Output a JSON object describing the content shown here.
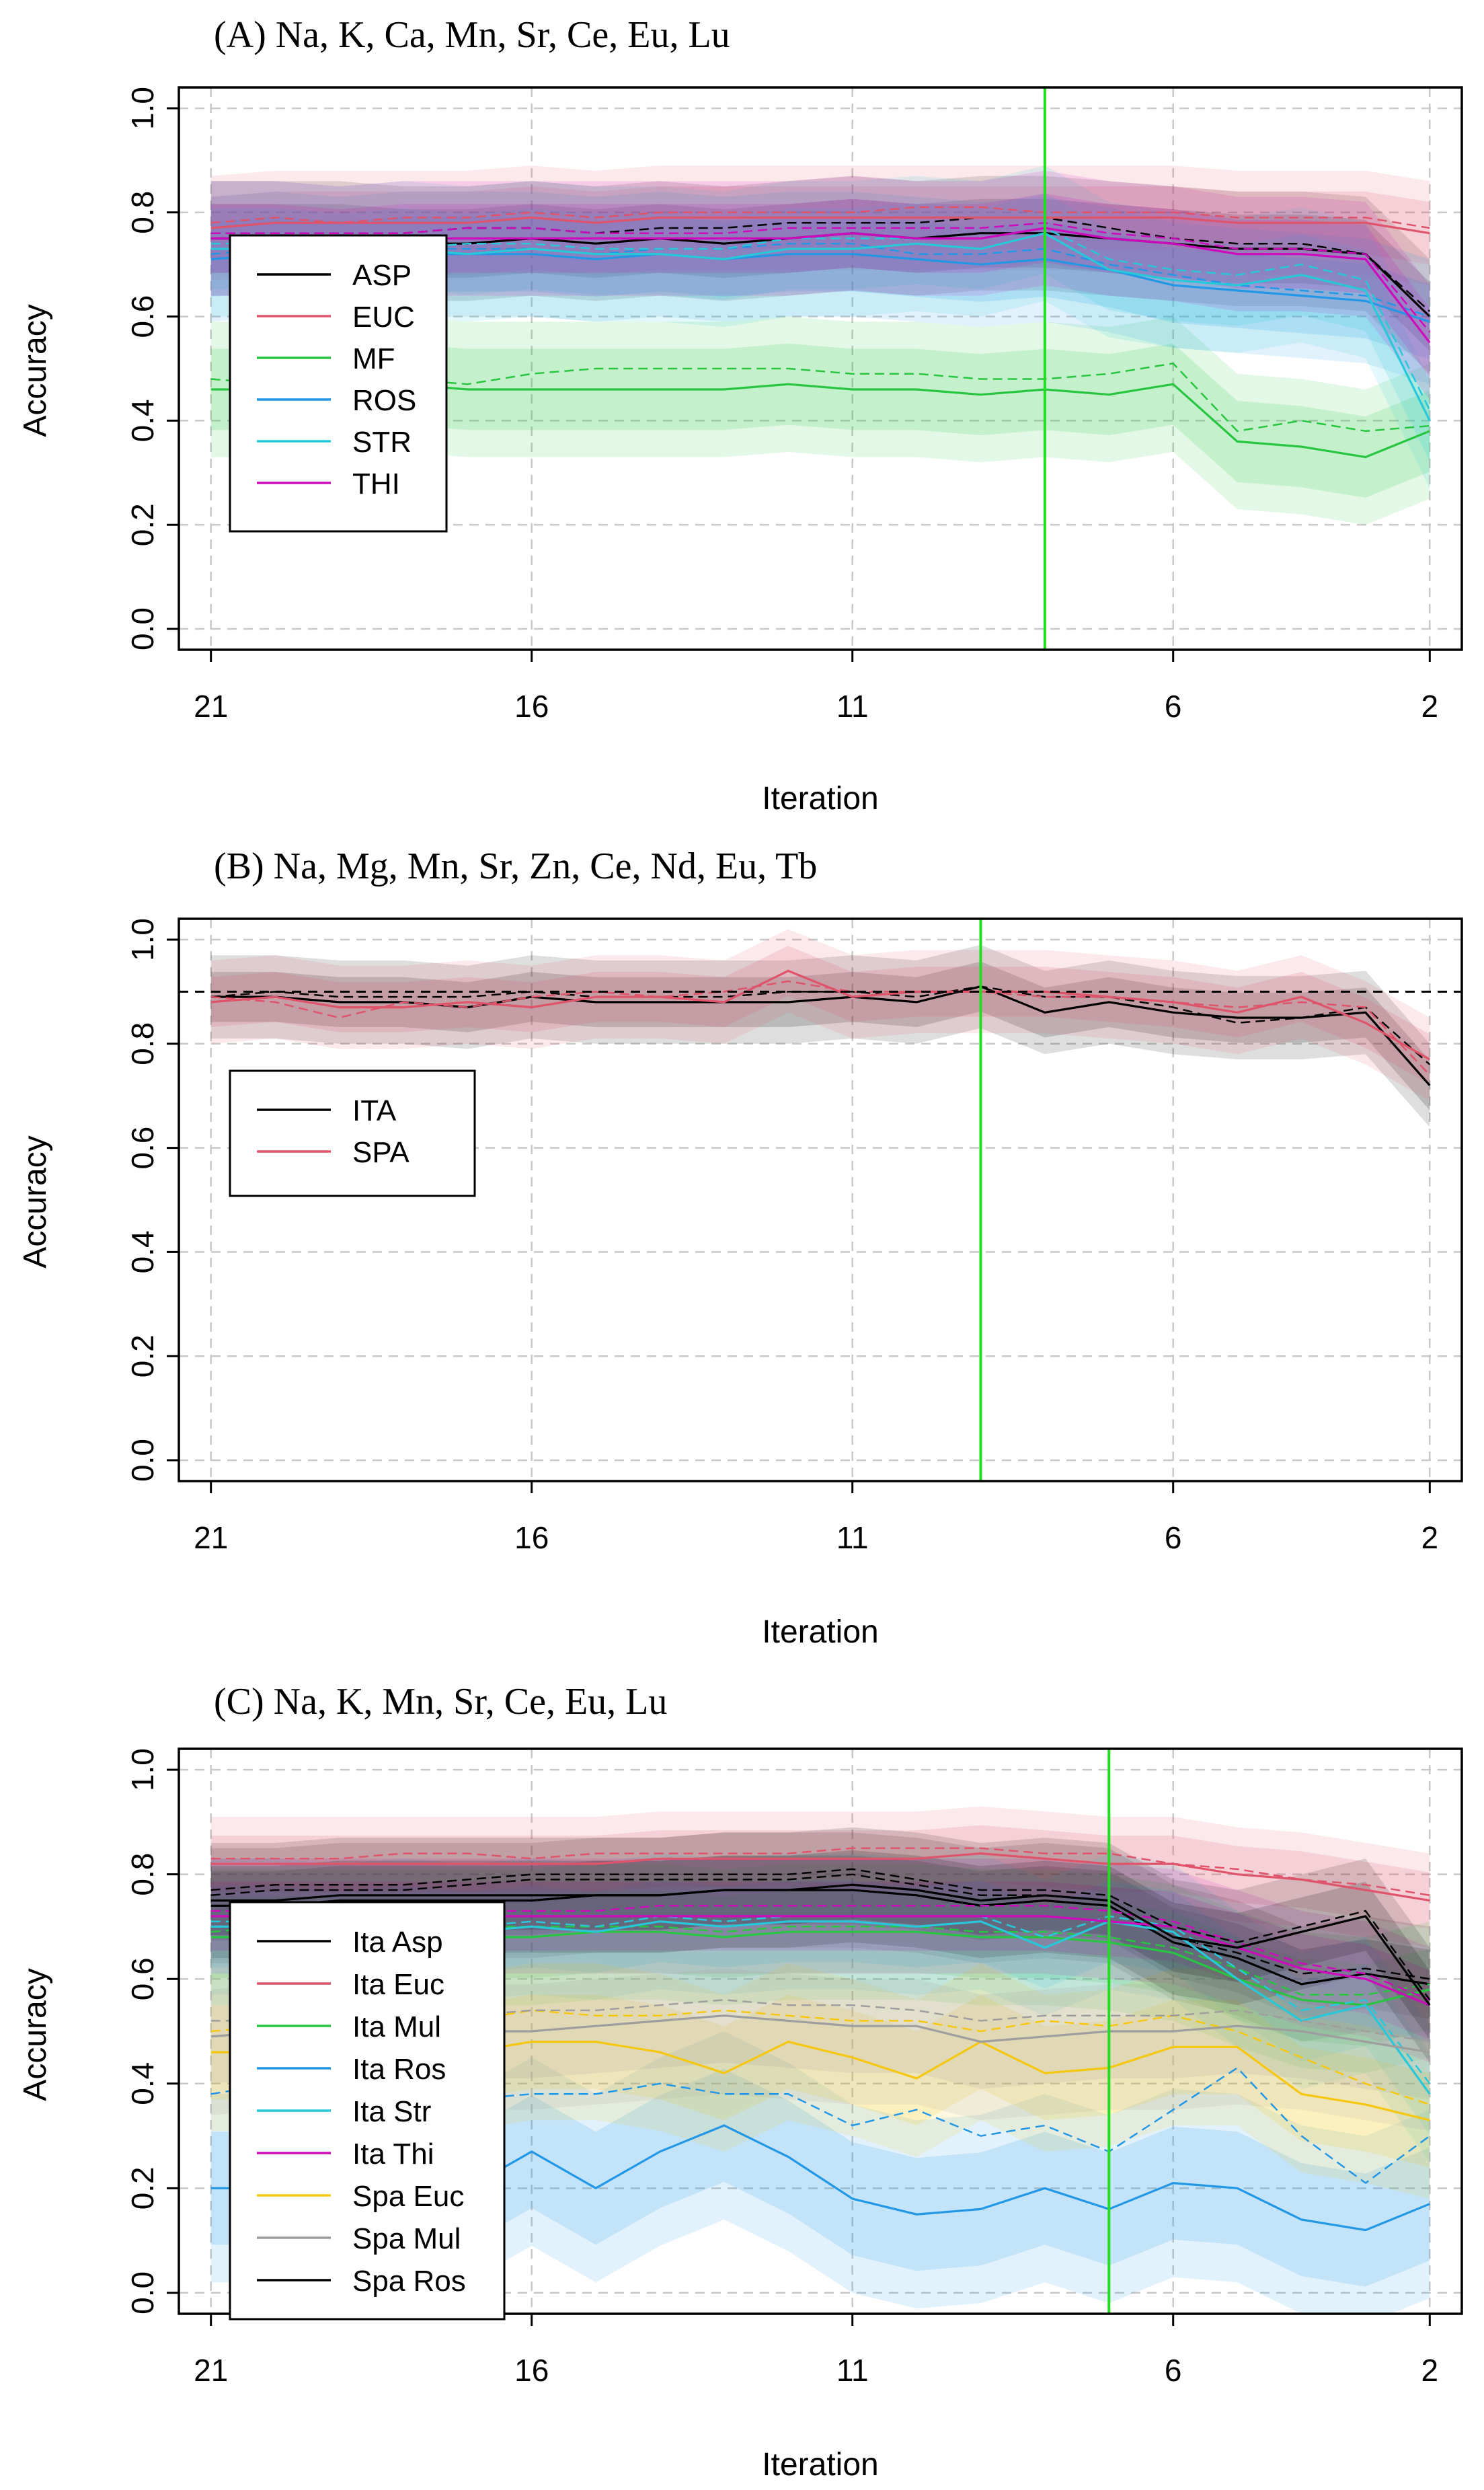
{
  "chart_data": [
    {
      "type": "line",
      "title": "(A) Na, K, Ca, Mn, Sr, Ce, Eu, Lu",
      "xlabel": "Iteration",
      "ylabel": "Accuracy",
      "xlim": [
        21.5,
        1.5
      ],
      "ylim": [
        -0.04,
        1.04
      ],
      "xticks": [
        "21",
        "16",
        "11",
        "6",
        "2"
      ],
      "yticks": [
        "0.0",
        "0.2",
        "0.4",
        "0.6",
        "0.8",
        "1.0"
      ],
      "grid": true,
      "legend_position": "left",
      "vline": 8,
      "hline": null,
      "x": [
        21,
        20,
        19,
        18,
        17,
        16,
        15,
        14,
        13,
        12,
        11,
        10,
        9,
        8,
        7,
        6,
        5,
        4,
        3,
        2
      ],
      "series": [
        {
          "name": "ASP",
          "color": "#000000",
          "values": [
            0.75,
            0.75,
            0.75,
            0.74,
            0.74,
            0.75,
            0.74,
            0.75,
            0.74,
            0.75,
            0.76,
            0.75,
            0.76,
            0.76,
            0.75,
            0.74,
            0.73,
            0.73,
            0.72,
            0.6
          ],
          "dashed": [
            0.76,
            0.76,
            0.76,
            0.76,
            0.77,
            0.77,
            0.76,
            0.77,
            0.77,
            0.78,
            0.78,
            0.78,
            0.79,
            0.79,
            0.77,
            0.75,
            0.74,
            0.74,
            0.72,
            0.61
          ],
          "band": 0.11
        },
        {
          "name": "EUC",
          "color": "#df536b",
          "values": [
            0.77,
            0.78,
            0.78,
            0.78,
            0.78,
            0.79,
            0.78,
            0.79,
            0.79,
            0.79,
            0.79,
            0.79,
            0.79,
            0.79,
            0.79,
            0.79,
            0.78,
            0.78,
            0.78,
            0.76
          ],
          "dashed": [
            0.78,
            0.79,
            0.78,
            0.79,
            0.79,
            0.8,
            0.79,
            0.8,
            0.8,
            0.8,
            0.8,
            0.81,
            0.81,
            0.8,
            0.8,
            0.8,
            0.79,
            0.79,
            0.79,
            0.77
          ],
          "band": 0.1
        },
        {
          "name": "MF",
          "color": "#28c640",
          "values": [
            0.46,
            0.46,
            0.46,
            0.47,
            0.46,
            0.46,
            0.46,
            0.46,
            0.46,
            0.47,
            0.46,
            0.46,
            0.45,
            0.46,
            0.45,
            0.47,
            0.36,
            0.35,
            0.33,
            0.38
          ],
          "dashed": [
            0.48,
            0.47,
            0.47,
            0.48,
            0.47,
            0.49,
            0.5,
            0.5,
            0.5,
            0.5,
            0.49,
            0.49,
            0.48,
            0.48,
            0.49,
            0.51,
            0.38,
            0.4,
            0.38,
            0.39
          ],
          "band": 0.13
        },
        {
          "name": "ROS",
          "color": "#2297e6",
          "values": [
            0.71,
            0.72,
            0.71,
            0.72,
            0.72,
            0.72,
            0.71,
            0.72,
            0.71,
            0.72,
            0.72,
            0.71,
            0.7,
            0.71,
            0.69,
            0.66,
            0.65,
            0.64,
            0.63,
            0.59
          ],
          "dashed": [
            0.72,
            0.73,
            0.72,
            0.73,
            0.73,
            0.73,
            0.72,
            0.73,
            0.73,
            0.74,
            0.74,
            0.72,
            0.72,
            0.73,
            0.7,
            0.68,
            0.66,
            0.65,
            0.64,
            0.6
          ],
          "band": 0.12
        },
        {
          "name": "STR",
          "color": "#26c8d9",
          "values": [
            0.73,
            0.73,
            0.72,
            0.73,
            0.72,
            0.73,
            0.72,
            0.72,
            0.71,
            0.73,
            0.73,
            0.74,
            0.73,
            0.76,
            0.69,
            0.67,
            0.66,
            0.68,
            0.65,
            0.4
          ],
          "dashed": [
            0.74,
            0.74,
            0.74,
            0.73,
            0.74,
            0.74,
            0.73,
            0.73,
            0.73,
            0.75,
            0.75,
            0.75,
            0.75,
            0.77,
            0.71,
            0.69,
            0.68,
            0.7,
            0.67,
            0.42
          ],
          "band": 0.13
        },
        {
          "name": "THI",
          "color": "#cd0bbc",
          "values": [
            0.75,
            0.75,
            0.74,
            0.75,
            0.75,
            0.75,
            0.75,
            0.75,
            0.75,
            0.75,
            0.76,
            0.75,
            0.75,
            0.77,
            0.75,
            0.74,
            0.72,
            0.72,
            0.71,
            0.55
          ],
          "dashed": [
            0.76,
            0.76,
            0.76,
            0.76,
            0.77,
            0.77,
            0.76,
            0.76,
            0.76,
            0.77,
            0.77,
            0.77,
            0.77,
            0.78,
            0.76,
            0.75,
            0.73,
            0.73,
            0.72,
            0.57
          ],
          "band": 0.11
        }
      ]
    },
    {
      "type": "line",
      "title": "(B) Na, Mg, Mn, Sr, Zn, Ce, Nd, Eu, Tb",
      "xlabel": "Iteration",
      "ylabel": "Accuracy",
      "xlim": [
        21.5,
        1.5
      ],
      "ylim": [
        -0.04,
        1.04
      ],
      "xticks": [
        "21",
        "16",
        "11",
        "6",
        "2"
      ],
      "yticks": [
        "0.0",
        "0.2",
        "0.4",
        "0.6",
        "0.8",
        "1.0"
      ],
      "grid": true,
      "legend_position": "left",
      "vline": 9,
      "hline": 0.9,
      "x": [
        21,
        20,
        19,
        18,
        17,
        16,
        15,
        14,
        13,
        12,
        11,
        10,
        9,
        8,
        7,
        6,
        5,
        4,
        3,
        2
      ],
      "series": [
        {
          "name": "ITA",
          "color": "#000000",
          "values": [
            0.89,
            0.89,
            0.88,
            0.88,
            0.87,
            0.89,
            0.88,
            0.88,
            0.88,
            0.88,
            0.89,
            0.88,
            0.91,
            0.86,
            0.88,
            0.86,
            0.85,
            0.85,
            0.86,
            0.72
          ],
          "dashed": [
            0.89,
            0.9,
            0.89,
            0.89,
            0.89,
            0.9,
            0.89,
            0.89,
            0.89,
            0.9,
            0.9,
            0.89,
            0.91,
            0.89,
            0.89,
            0.87,
            0.84,
            0.85,
            0.87,
            0.76
          ],
          "band": 0.08
        },
        {
          "name": "SPA",
          "color": "#df536b",
          "values": [
            0.88,
            0.89,
            0.87,
            0.87,
            0.88,
            0.87,
            0.89,
            0.89,
            0.88,
            0.94,
            0.89,
            0.9,
            0.9,
            0.9,
            0.89,
            0.88,
            0.86,
            0.89,
            0.84,
            0.77
          ],
          "dashed": [
            0.89,
            0.88,
            0.85,
            0.88,
            0.87,
            0.89,
            0.9,
            0.89,
            0.9,
            0.92,
            0.9,
            0.9,
            0.9,
            0.89,
            0.89,
            0.88,
            0.87,
            0.88,
            0.87,
            0.74
          ],
          "band": 0.08
        }
      ]
    },
    {
      "type": "line",
      "title": "(C) Na, K, Mn, Sr, Ce, Eu, Lu",
      "xlabel": "Iteration",
      "ylabel": "Accuracy",
      "xlim": [
        21.5,
        1.5
      ],
      "ylim": [
        -0.04,
        1.04
      ],
      "xticks": [
        "21",
        "16",
        "11",
        "6",
        "2"
      ],
      "yticks": [
        "0.0",
        "0.2",
        "0.4",
        "0.6",
        "0.8",
        "1.0"
      ],
      "grid": true,
      "legend_position": "left",
      "vline": 7,
      "hline": null,
      "x": [
        21,
        20,
        19,
        18,
        17,
        16,
        15,
        14,
        13,
        12,
        11,
        10,
        9,
        8,
        7,
        6,
        5,
        4,
        3,
        2
      ],
      "series": [
        {
          "name": "Ita Asp",
          "color": "#000000",
          "values": [
            0.74,
            0.74,
            0.75,
            0.75,
            0.75,
            0.75,
            0.76,
            0.76,
            0.77,
            0.77,
            0.77,
            0.76,
            0.74,
            0.75,
            0.74,
            0.67,
            0.64,
            0.59,
            0.61,
            0.59
          ],
          "dashed": [
            0.76,
            0.77,
            0.77,
            0.77,
            0.78,
            0.79,
            0.79,
            0.79,
            0.79,
            0.79,
            0.8,
            0.78,
            0.76,
            0.76,
            0.75,
            0.68,
            0.65,
            0.61,
            0.62,
            0.6
          ],
          "band": 0.11
        },
        {
          "name": "Ita Euc",
          "color": "#df536b",
          "values": [
            0.82,
            0.82,
            0.82,
            0.82,
            0.82,
            0.82,
            0.82,
            0.83,
            0.83,
            0.83,
            0.83,
            0.83,
            0.84,
            0.83,
            0.82,
            0.82,
            0.8,
            0.79,
            0.77,
            0.75
          ],
          "dashed": [
            0.83,
            0.83,
            0.83,
            0.84,
            0.84,
            0.83,
            0.84,
            0.84,
            0.84,
            0.84,
            0.85,
            0.85,
            0.85,
            0.84,
            0.84,
            0.82,
            0.81,
            0.79,
            0.78,
            0.76
          ],
          "band": 0.09
        },
        {
          "name": "Ita Mul",
          "color": "#28c640",
          "values": [
            0.68,
            0.68,
            0.68,
            0.68,
            0.68,
            0.68,
            0.69,
            0.69,
            0.68,
            0.69,
            0.69,
            0.69,
            0.68,
            0.68,
            0.67,
            0.65,
            0.6,
            0.56,
            0.55,
            0.58
          ],
          "dashed": [
            0.69,
            0.7,
            0.69,
            0.7,
            0.7,
            0.7,
            0.7,
            0.7,
            0.69,
            0.7,
            0.7,
            0.7,
            0.69,
            0.69,
            0.68,
            0.66,
            0.62,
            0.57,
            0.57,
            0.59
          ],
          "band": 0.13
        },
        {
          "name": "Ita Ros",
          "color": "#2297e6",
          "values": [
            0.2,
            0.2,
            0.2,
            0.2,
            0.2,
            0.27,
            0.2,
            0.27,
            0.32,
            0.26,
            0.18,
            0.15,
            0.16,
            0.2,
            0.16,
            0.21,
            0.2,
            0.14,
            0.12,
            0.17
          ],
          "dashed": [
            0.38,
            0.4,
            0.38,
            0.37,
            0.37,
            0.38,
            0.38,
            0.4,
            0.38,
            0.38,
            0.32,
            0.35,
            0.3,
            0.32,
            0.27,
            0.35,
            0.43,
            0.3,
            0.21,
            0.3
          ],
          "band": 0.18
        },
        {
          "name": "Ita Str",
          "color": "#26c8d9",
          "values": [
            0.7,
            0.7,
            0.69,
            0.7,
            0.69,
            0.7,
            0.69,
            0.71,
            0.7,
            0.71,
            0.71,
            0.7,
            0.71,
            0.66,
            0.71,
            0.69,
            0.6,
            0.52,
            0.55,
            0.38
          ],
          "dashed": [
            0.71,
            0.71,
            0.71,
            0.71,
            0.7,
            0.71,
            0.7,
            0.72,
            0.71,
            0.72,
            0.72,
            0.72,
            0.72,
            0.68,
            0.72,
            0.7,
            0.62,
            0.54,
            0.56,
            0.4
          ],
          "band": 0.13
        },
        {
          "name": "Ita Thi",
          "color": "#cd0bbc",
          "values": [
            0.72,
            0.72,
            0.72,
            0.72,
            0.72,
            0.72,
            0.72,
            0.72,
            0.72,
            0.72,
            0.72,
            0.72,
            0.72,
            0.72,
            0.71,
            0.7,
            0.66,
            0.62,
            0.6,
            0.55
          ],
          "dashed": [
            0.73,
            0.73,
            0.73,
            0.73,
            0.73,
            0.73,
            0.73,
            0.74,
            0.74,
            0.74,
            0.74,
            0.74,
            0.74,
            0.74,
            0.73,
            0.71,
            0.67,
            0.63,
            0.61,
            0.56
          ],
          "band": 0.11
        },
        {
          "name": "Spa Euc",
          "color": "#f5c710",
          "values": [
            0.46,
            0.46,
            0.46,
            0.47,
            0.46,
            0.48,
            0.48,
            0.46,
            0.42,
            0.48,
            0.45,
            0.41,
            0.48,
            0.42,
            0.43,
            0.47,
            0.47,
            0.38,
            0.36,
            0.33
          ],
          "dashed": [
            0.5,
            0.51,
            0.5,
            0.51,
            0.52,
            0.54,
            0.53,
            0.53,
            0.54,
            0.53,
            0.52,
            0.52,
            0.5,
            0.52,
            0.51,
            0.53,
            0.5,
            0.45,
            0.4,
            0.36
          ],
          "band": 0.15
        },
        {
          "name": "Spa Mul",
          "color": "#9e9e9e",
          "values": [
            0.49,
            0.5,
            0.49,
            0.5,
            0.5,
            0.5,
            0.51,
            0.52,
            0.53,
            0.52,
            0.51,
            0.51,
            0.48,
            0.49,
            0.5,
            0.5,
            0.51,
            0.5,
            0.48,
            0.46
          ],
          "dashed": [
            0.52,
            0.52,
            0.52,
            0.53,
            0.53,
            0.54,
            0.54,
            0.55,
            0.56,
            0.55,
            0.55,
            0.54,
            0.52,
            0.53,
            0.53,
            0.53,
            0.54,
            0.52,
            0.5,
            0.48
          ],
          "band": 0.15
        },
        {
          "name": "Spa Ros",
          "color": "#000000",
          "values": [
            0.75,
            0.75,
            0.76,
            0.76,
            0.76,
            0.76,
            0.76,
            0.76,
            0.77,
            0.77,
            0.78,
            0.77,
            0.75,
            0.76,
            0.75,
            0.68,
            0.66,
            0.69,
            0.72,
            0.55
          ],
          "dashed": [
            0.77,
            0.78,
            0.78,
            0.78,
            0.79,
            0.8,
            0.8,
            0.8,
            0.8,
            0.8,
            0.81,
            0.79,
            0.77,
            0.77,
            0.76,
            0.7,
            0.67,
            0.7,
            0.73,
            0.56
          ],
          "band": 0.11
        }
      ]
    }
  ]
}
